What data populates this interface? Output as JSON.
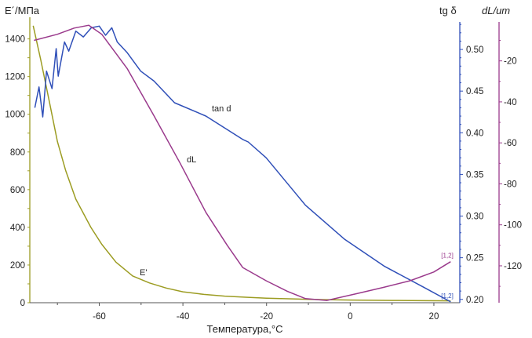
{
  "chart_data": {
    "type": "line",
    "xlabel": "Температура,°C",
    "ylabel_left": "E´/МПа",
    "ylabel_right1": "tg δ",
    "ylabel_right2": "dL/um",
    "xlim": [
      -76.6,
      26.2
    ],
    "ylim_left": [
      0,
      1490
    ],
    "ylim_tan": [
      0.196,
      0.533
    ],
    "ylim_dl": [
      -138,
      -1
    ],
    "x_ticks": [
      "-60",
      "-40",
      "-20",
      "0",
      "20"
    ],
    "x_tick_values": [
      -60,
      -40,
      -20,
      0,
      20
    ],
    "y_left_ticks": [
      "0",
      "200",
      "400",
      "600",
      "800",
      "1000",
      "1200",
      "1400"
    ],
    "y_left_tick_values": [
      0,
      200,
      400,
      600,
      800,
      1000,
      1200,
      1400
    ],
    "y_tan_ticks": [
      "0.20",
      "0.25",
      "0.30",
      "0.35",
      "0.40",
      "0.45",
      "0.50"
    ],
    "y_tan_tick_values": [
      0.2,
      0.25,
      0.3,
      0.35,
      0.4,
      0.45,
      0.5
    ],
    "y_dl_ticks": [
      "-20",
      "-40",
      "-60",
      "-80",
      "-100",
      "-120"
    ],
    "y_dl_tick_values": [
      -20,
      -40,
      -60,
      -80,
      -100,
      -120
    ],
    "colors": {
      "E": "#9c9c22",
      "tan": "#2f4fb8",
      "dL": "#9a3a8c"
    },
    "series": [
      {
        "name": "E'",
        "label": "E'",
        "axis": "left",
        "points": [
          [
            -75.8,
            1470
          ],
          [
            -74,
            1290
          ],
          [
            -72,
            1075
          ],
          [
            -70,
            855
          ],
          [
            -68,
            700
          ],
          [
            -65.6,
            550
          ],
          [
            -62,
            400
          ],
          [
            -59.4,
            310
          ],
          [
            -56,
            215
          ],
          [
            -52,
            142
          ],
          [
            -48,
            105
          ],
          [
            -44,
            78
          ],
          [
            -40,
            58
          ],
          [
            -35,
            44
          ],
          [
            -30,
            35
          ],
          [
            -25,
            29
          ],
          [
            -20,
            24
          ],
          [
            -10,
            18
          ],
          [
            0,
            14
          ],
          [
            10,
            12
          ],
          [
            24,
            10
          ]
        ]
      },
      {
        "name": "tan d",
        "label": "tan d",
        "axis": "tan",
        "end_marker": "[1,2]",
        "points": [
          [
            -75.4,
            0.43
          ],
          [
            -74.4,
            0.455
          ],
          [
            -73.5,
            0.419
          ],
          [
            -72.6,
            0.474
          ],
          [
            -71.3,
            0.453
          ],
          [
            -70.3,
            0.501
          ],
          [
            -69.8,
            0.468
          ],
          [
            -68.3,
            0.509
          ],
          [
            -67.3,
            0.498
          ],
          [
            -65.6,
            0.522
          ],
          [
            -63.8,
            0.515
          ],
          [
            -61.9,
            0.526
          ],
          [
            -60,
            0.528
          ],
          [
            -58.5,
            0.517
          ],
          [
            -57,
            0.526
          ],
          [
            -55.7,
            0.509
          ],
          [
            -53.3,
            0.496
          ],
          [
            -50.1,
            0.474
          ],
          [
            -46.9,
            0.462
          ],
          [
            -42,
            0.436
          ],
          [
            -34.5,
            0.42
          ],
          [
            -25.7,
            0.392
          ],
          [
            -24.4,
            0.389
          ],
          [
            -20.1,
            0.37
          ],
          [
            -10.7,
            0.313
          ],
          [
            -1.3,
            0.272
          ],
          [
            8.1,
            0.24
          ],
          [
            17.4,
            0.215
          ],
          [
            24,
            0.197
          ]
        ]
      },
      {
        "name": "dL",
        "label": "dL",
        "axis": "dl",
        "end_marker": "[1,2]",
        "points": [
          [
            -75.6,
            -10
          ],
          [
            -70,
            -7
          ],
          [
            -66,
            -4
          ],
          [
            -62.5,
            -2.6
          ],
          [
            -59.4,
            -7
          ],
          [
            -53.3,
            -23.8
          ],
          [
            -46.9,
            -46.8
          ],
          [
            -40.7,
            -69.8
          ],
          [
            -34.5,
            -93.9
          ],
          [
            -29.4,
            -110
          ],
          [
            -25.7,
            -120.8
          ],
          [
            -20.1,
            -127.3
          ],
          [
            -15,
            -132.5
          ],
          [
            -10.7,
            -136
          ],
          [
            -5.6,
            -136.9
          ],
          [
            1.9,
            -133.4
          ],
          [
            8,
            -130.5
          ],
          [
            14.3,
            -127.3
          ],
          [
            20,
            -123
          ],
          [
            24,
            -118
          ]
        ]
      }
    ]
  }
}
